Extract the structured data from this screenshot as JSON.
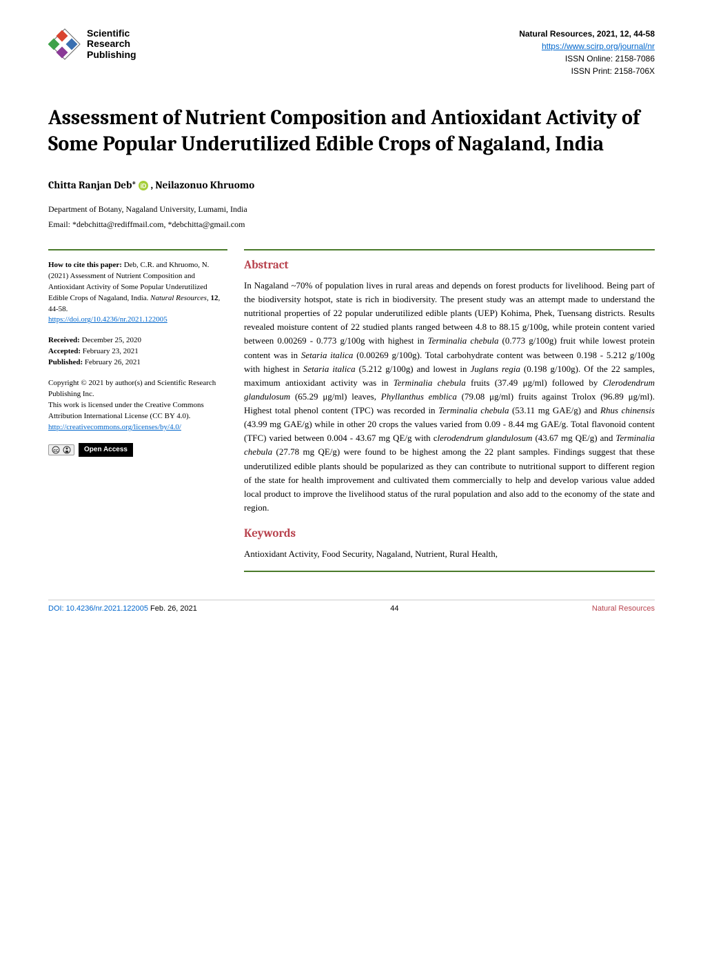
{
  "publisher": {
    "logo_lines": [
      "Scientific",
      "Research",
      "Publishing"
    ],
    "logo_colors": {
      "square1": "#d9442f",
      "square2": "#3a6fb0",
      "square3": "#8a3a96",
      "square4": "#3fa24a"
    }
  },
  "journal_meta": {
    "title_line": "Natural Resources, 2021, 12, 44-58",
    "url": "https://www.scirp.org/journal/nr",
    "issn_online": "ISSN Online: 2158-7086",
    "issn_print": "ISSN Print: 2158-706X"
  },
  "paper": {
    "title": "Assessment of Nutrient Composition and Antioxidant Activity of Some Popular Underutilized Edible Crops of Nagaland, India",
    "authors_html": "Chitta Ranjan Deb* , Neilazonuo Khruomo",
    "author1": "Chitta Ranjan Deb*",
    "author2": ", Neilazonuo Khruomo",
    "affiliation": "Department of Botany, Nagaland University, Lumami, India",
    "email": "Email: *debchitta@rediffmail.com, *debchitta@gmail.com"
  },
  "citation": {
    "lead": "How to cite this paper:",
    "text_part1": " Deb, C.R. and Khruomo, N. (2021) Assessment of Nutrient Composition and Antioxidant Activity of Some Popular Underutilized Edible Crops of Nagaland, India. ",
    "journal_ital": "Natural Resources",
    "text_part2": ", ",
    "vol_bold": "12",
    "text_part3": ", 44-58.",
    "doi_url": "https://doi.org/10.4236/nr.2021.122005"
  },
  "dates": {
    "received_label": "Received:",
    "received": " December 25, 2020",
    "accepted_label": "Accepted:",
    "accepted": " February 23, 2021",
    "published_label": "Published:",
    "published": " February 26, 2021"
  },
  "copyright": {
    "line1": "Copyright © 2021 by author(s) and Scientific Research Publishing Inc.",
    "line2": "This work is licensed under the Creative Commons Attribution International License (CC BY 4.0).",
    "cc_url": "http://creativecommons.org/licenses/by/4.0/",
    "cc_label": "cc   ⓘ",
    "oa_label": "Open Access"
  },
  "abstract": {
    "heading": "Abstract",
    "body_segments": [
      {
        "t": "In Nagaland ~70% of population lives in rural areas and depends on forest products for livelihood. Being part of the biodiversity hotspot, state is rich in biodiversity. The present study was an attempt made to understand the nutritional properties of 22 popular underutilized edible plants (UEP) Kohima, Phek, Tuensang districts. Results revealed moisture content of 22 studied plants ranged between 4.8 to 88.15 g/100g, while protein content varied between 0.00269 - 0.773 g/100g with highest in "
      },
      {
        "t": "Terminalia chebula",
        "i": true
      },
      {
        "t": " (0.773 g/100g) fruit while lowest protein content was in "
      },
      {
        "t": "Setaria italica",
        "i": true
      },
      {
        "t": " (0.00269 g/100g). Total carbohydrate content was between 0.198 - 5.212 g/100g with highest in "
      },
      {
        "t": "Setaria italica",
        "i": true
      },
      {
        "t": " (5.212 g/100g) and lowest in "
      },
      {
        "t": "Juglans regia",
        "i": true
      },
      {
        "t": " (0.198 g/100g). Of the 22 samples, maximum antioxidant activity was in "
      },
      {
        "t": "Terminalia chebula",
        "i": true
      },
      {
        "t": " fruits (37.49 μg/ml) followed by "
      },
      {
        "t": "Clerodendrum glandulosum",
        "i": true
      },
      {
        "t": " (65.29 μg/ml) leaves, "
      },
      {
        "t": "Phyllanthus emblica",
        "i": true
      },
      {
        "t": " (79.08 μg/ml) fruits against Trolox (96.89 μg/ml). Highest total phenol content (TPC) was recorded in "
      },
      {
        "t": "Terminalia chebula",
        "i": true
      },
      {
        "t": " (53.11 mg GAE/g) and "
      },
      {
        "t": "Rhus chinensis",
        "i": true
      },
      {
        "t": " (43.99 mg GAE/g) while in other 20 crops the values varied from 0.09 - 8.44 mg GAE/g. Total flavonoid content (TFC) varied between 0.004 - 43.67 mg QE/g with c"
      },
      {
        "t": "lerodendrum glandulosum",
        "i": true
      },
      {
        "t": " (43.67 mg QE/g) and "
      },
      {
        "t": "Terminalia chebula",
        "i": true
      },
      {
        "t": " (27.78 mg QE/g) were found to be highest among the 22 plant samples. Findings suggest that these underutilized edible plants should be popularized as they can contribute to nutritional support to different region of the state for health improvement and cultivated them commercially to help and develop various value added local product to improve the livelihood status of the rural population and also add to the economy of the state and region."
      }
    ]
  },
  "keywords": {
    "heading": "Keywords",
    "body": "Antioxidant Activity, Food Security, Nagaland, Nutrient, Rural Health,"
  },
  "footer": {
    "doi": "DOI: 10.4236/nr.2021.122005",
    "date": "  Feb. 26, 2021",
    "page": "44",
    "journal": "Natural Resources"
  },
  "colors": {
    "accent_green": "#4a7a2a",
    "heading_red": "#b8434e",
    "link_blue": "#0066cc",
    "orcid_green": "#a6ce39"
  }
}
